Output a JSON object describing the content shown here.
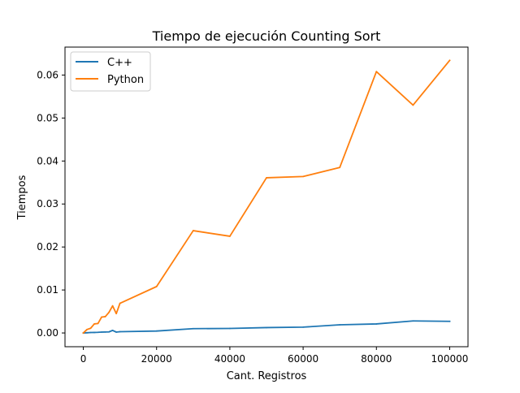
{
  "chart_data": {
    "type": "line",
    "title": "Tiempo de ejecución Counting Sort",
    "xlabel": "Cant. Registros",
    "ylabel": "Tiempos",
    "xlim": [
      -5000,
      105000
    ],
    "ylim": [
      -0.0032,
      0.0665
    ],
    "xticks": [
      0,
      20000,
      40000,
      60000,
      80000,
      100000
    ],
    "xtick_labels": [
      "0",
      "20000",
      "40000",
      "60000",
      "80000",
      "100000"
    ],
    "yticks": [
      0.0,
      0.01,
      0.02,
      0.03,
      0.04,
      0.05,
      0.06
    ],
    "ytick_labels": [
      "0.00",
      "0.01",
      "0.02",
      "0.03",
      "0.04",
      "0.05",
      "0.06"
    ],
    "grid": false,
    "legend_position": "top-left",
    "series": [
      {
        "name": "C++",
        "color": "#1f77b4",
        "x": [
          0,
          1000,
          2000,
          3000,
          4000,
          5000,
          6000,
          7000,
          8000,
          9000,
          10000,
          20000,
          30000,
          40000,
          50000,
          60000,
          70000,
          80000,
          90000,
          100000
        ],
        "y": [
          0.0,
          5e-05,
          0.0001,
          0.00012,
          0.00015,
          0.0002,
          0.00022,
          0.00025,
          0.0006,
          0.0002,
          0.0003,
          0.00045,
          0.001,
          0.00105,
          0.00125,
          0.00135,
          0.0019,
          0.0021,
          0.0028,
          0.0027
        ]
      },
      {
        "name": "Python",
        "color": "#ff7f0e",
        "x": [
          0,
          1000,
          2000,
          3000,
          4000,
          5000,
          6000,
          7000,
          8000,
          9000,
          10000,
          20000,
          30000,
          40000,
          50000,
          60000,
          70000,
          80000,
          90000,
          100000
        ],
        "y": [
          0.0,
          0.0008,
          0.0011,
          0.0021,
          0.0022,
          0.0037,
          0.0038,
          0.0048,
          0.0063,
          0.0045,
          0.0069,
          0.0108,
          0.0238,
          0.0225,
          0.0361,
          0.0364,
          0.0385,
          0.0608,
          0.053,
          0.0634
        ]
      }
    ]
  }
}
